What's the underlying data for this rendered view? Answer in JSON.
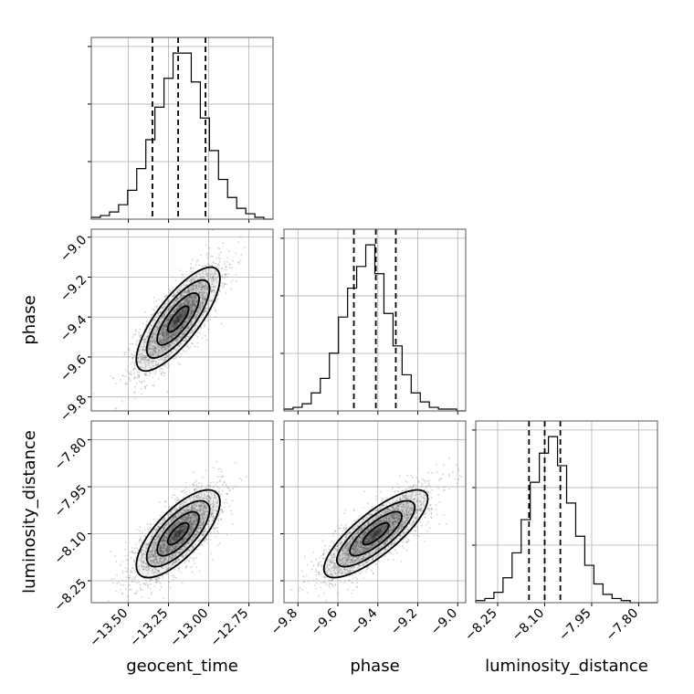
{
  "chart_data": {
    "type": "corner",
    "parameters": [
      {
        "name": "geocent_time",
        "range": [
          -13.73,
          -12.6
        ],
        "ticks": [
          "−13.50",
          "−13.25",
          "−13.00",
          "−12.75"
        ],
        "tick_values": [
          -13.5,
          -13.25,
          -13.0,
          -12.75
        ],
        "quantiles": [
          -13.35,
          -13.19,
          -13.02
        ],
        "histogram": [
          1,
          2,
          4,
          8,
          16,
          28,
          44,
          62,
          78,
          92,
          92,
          76,
          56,
          38,
          22,
          12,
          6,
          3,
          1,
          0
        ]
      },
      {
        "name": "phase",
        "range": [
          -9.87,
          -8.96
        ],
        "ticks": [
          "−9.8",
          "−9.6",
          "−9.4",
          "−9.2",
          "−9.0"
        ],
        "tick_values": [
          -9.8,
          -9.6,
          -9.4,
          -9.2,
          -9.0
        ],
        "quantiles": [
          -9.52,
          -9.41,
          -9.31
        ],
        "histogram": [
          1,
          2,
          4,
          10,
          18,
          32,
          52,
          68,
          80,
          92,
          76,
          54,
          36,
          20,
          10,
          5,
          2,
          1,
          1,
          0
        ]
      },
      {
        "name": "luminosity_distance",
        "range": [
          -8.32,
          -7.74
        ],
        "ticks": [
          "−8.25",
          "−8.10",
          "−7.95",
          "−7.80"
        ],
        "tick_values": [
          -8.25,
          -8.1,
          -7.95,
          -7.8
        ],
        "quantiles": [
          -8.15,
          -8.1,
          -8.05
        ],
        "histogram": [
          1,
          2,
          5,
          12,
          24,
          40,
          58,
          72,
          80,
          66,
          48,
          32,
          18,
          9,
          4,
          2,
          1,
          0,
          0,
          0
        ]
      }
    ],
    "pairs": [
      {
        "x": 0,
        "y": 1,
        "center": [
          -13.19,
          -9.41
        ],
        "sigma": [
          0.13,
          0.13
        ],
        "rho": 0.78
      },
      {
        "x": 0,
        "y": 2,
        "center": [
          -13.19,
          -8.1
        ],
        "sigma": [
          0.13,
          0.07
        ],
        "rho": 0.72
      },
      {
        "x": 1,
        "y": 2,
        "center": [
          -9.41,
          -8.1
        ],
        "sigma": [
          0.13,
          0.07
        ],
        "rho": 0.8
      }
    ],
    "contour_levels_sigma": [
      0.5,
      1.0,
      1.5,
      2.0
    ],
    "grid": true,
    "colors": {
      "line": "#000000",
      "frame": "#555555",
      "grid": "#b0b0b0",
      "scatter": "#808080"
    }
  }
}
